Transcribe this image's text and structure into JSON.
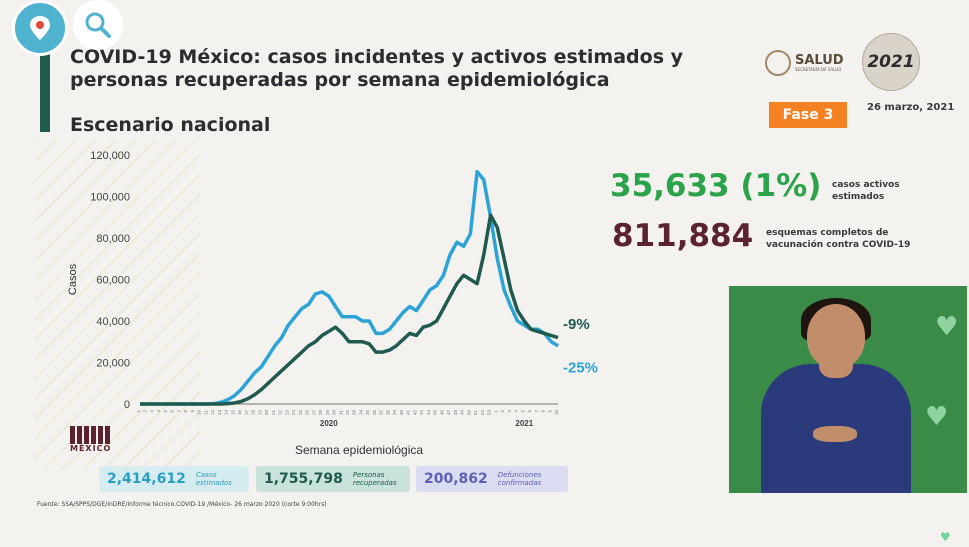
{
  "header": {
    "title": "COVID-19 México: casos incidentes y activos estimados y personas recuperadas por semana epidemiológica",
    "subtitle": "Escenario nacional",
    "salud_label": "SALUD",
    "salud_sublabel": "SECRETARÍA DE SALUD",
    "year_logo": "2021",
    "phase": "Fase 3",
    "date": "26 marzo, 2021"
  },
  "stats": {
    "active_value": "35,633 (1%)",
    "active_label": "casos activos estimados",
    "vaccine_value": "811,884",
    "vaccine_label": "esquemas completos de vacunación contra COVID-19"
  },
  "summary_boxes": [
    {
      "value": "2,414,612",
      "label": "Casos estimados"
    },
    {
      "value": "1,755,798",
      "label": "Personas recuperadas"
    },
    {
      "value": "200,862",
      "label": "Defunciones confirmadas"
    }
  ],
  "footer": {
    "source": "Fuente: SSA/SPPS/DGE/InDRE/Informe técnico.COVID-19 /México- 26 marzo 2020 (corte 9:00hrs)",
    "logo_text": "MÉXICO"
  },
  "colors": {
    "incident": "#2ba3d8",
    "recovered": "#1f5a4f",
    "accent_orange": "#f48222",
    "active_green": "#2aa34a",
    "wine": "#5b2330"
  },
  "icons": {
    "periscope": "periscope-icon",
    "search": "search-icon"
  },
  "chart_data": {
    "type": "line",
    "xlabel": "Semana epidemiológica",
    "ylabel": "Casos",
    "ylim": [
      0,
      120000
    ],
    "yticks": [
      "0",
      "20,000",
      "40,000",
      "60,000",
      "80,000",
      "100,000",
      "120,000"
    ],
    "year_labels": [
      "2020",
      "2021"
    ],
    "x": [
      1,
      2,
      3,
      4,
      5,
      6,
      7,
      8,
      9,
      10,
      11,
      12,
      13,
      14,
      15,
      16,
      17,
      18,
      19,
      20,
      21,
      22,
      23,
      24,
      25,
      26,
      27,
      28,
      29,
      30,
      31,
      32,
      33,
      34,
      35,
      36,
      37,
      38,
      39,
      40,
      41,
      42,
      43,
      44,
      45,
      46,
      47,
      48,
      49,
      50,
      51,
      52,
      53,
      1,
      2,
      3,
      4,
      5,
      6,
      7,
      8,
      9,
      10
    ],
    "grid": false,
    "series": [
      {
        "values": [
          0,
          0,
          0,
          0,
          0,
          0,
          0,
          0,
          0,
          0,
          0,
          200,
          800,
          2000,
          4000,
          7000,
          11000,
          15000,
          18000,
          23000,
          28000,
          32000,
          38000,
          42000,
          46000,
          48000,
          53000,
          54000,
          52000,
          47000,
          42000,
          42000,
          42000,
          40000,
          40000,
          34000,
          34000,
          36000,
          40000,
          44000,
          47000,
          45000,
          50000,
          55000,
          57000,
          62000,
          72000,
          78000,
          76000,
          82000,
          112000,
          108000,
          90000,
          70000,
          55000,
          47000,
          40000,
          38000,
          36000,
          36000,
          34000,
          30000,
          28000
        ]
      },
      {
        "values": [
          0,
          0,
          0,
          0,
          0,
          0,
          0,
          0,
          0,
          0,
          0,
          0,
          0,
          200,
          500,
          1200,
          2500,
          4500,
          7000,
          10000,
          13000,
          16000,
          19000,
          22000,
          25000,
          28000,
          30000,
          33000,
          35000,
          37000,
          34000,
          30000,
          30000,
          30000,
          29000,
          25000,
          25000,
          26000,
          28000,
          31000,
          34000,
          33000,
          37000,
          38000,
          40000,
          46000,
          52000,
          58000,
          62000,
          60000,
          58000,
          72000,
          91000,
          85000,
          70000,
          55000,
          45000,
          40000,
          36000,
          35000,
          34000,
          33000,
          32000
        ]
      }
    ],
    "end_labels": [
      "-9%",
      "-25%"
    ]
  }
}
